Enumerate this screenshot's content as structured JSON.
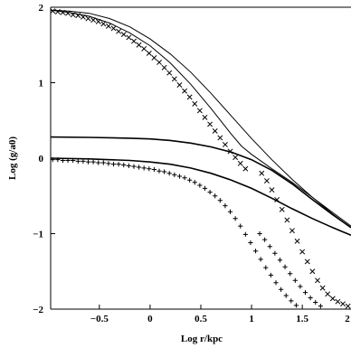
{
  "chart_data": {
    "type": "line",
    "title": "",
    "xlabel": "Log r/kpc",
    "ylabel": "Log (g/a0)",
    "xlim": [
      -0.98,
      1.98
    ],
    "ylim": [
      -2,
      2
    ],
    "grid": false,
    "x_ticks": [
      {
        "value": -0.5,
        "label": "−0.5"
      },
      {
        "value": 0,
        "label": "0"
      },
      {
        "value": 0.5,
        "label": "0.5"
      },
      {
        "value": 1,
        "label": "1"
      },
      {
        "value": 1.5,
        "label": "1.5"
      },
      {
        "value": 2,
        "label": "2"
      }
    ],
    "y_ticks": [
      {
        "value": 2,
        "label": "2"
      },
      {
        "value": 1,
        "label": "1"
      },
      {
        "value": 0,
        "label": "0"
      },
      {
        "value": -1,
        "label": "−1"
      },
      {
        "value": -2,
        "label": "−2"
      }
    ],
    "series": [
      {
        "style": "line",
        "width": 1,
        "points": [
          [
            -0.98,
            1.96
          ],
          [
            -0.8,
            1.95
          ],
          [
            -0.6,
            1.92
          ],
          [
            -0.4,
            1.85
          ],
          [
            -0.2,
            1.74
          ],
          [
            0.0,
            1.58
          ],
          [
            0.2,
            1.38
          ],
          [
            0.4,
            1.14
          ],
          [
            0.6,
            0.86
          ],
          [
            0.8,
            0.56
          ],
          [
            1.0,
            0.26
          ],
          [
            1.2,
            -0.02
          ],
          [
            1.4,
            -0.28
          ],
          [
            1.6,
            -0.52
          ],
          [
            1.8,
            -0.74
          ],
          [
            1.98,
            -0.92
          ]
        ]
      },
      {
        "style": "line",
        "width": 1.6,
        "points": [
          [
            -0.98,
            0.28
          ],
          [
            -0.6,
            0.275
          ],
          [
            -0.2,
            0.265
          ],
          [
            0.0,
            0.255
          ],
          [
            0.2,
            0.235
          ],
          [
            0.4,
            0.2
          ],
          [
            0.6,
            0.15
          ],
          [
            0.8,
            0.08
          ],
          [
            1.0,
            -0.02
          ],
          [
            1.2,
            -0.16
          ],
          [
            1.4,
            -0.34
          ],
          [
            1.6,
            -0.55
          ],
          [
            1.8,
            -0.75
          ],
          [
            1.98,
            -0.92
          ]
        ]
      },
      {
        "style": "line",
        "width": 1.6,
        "points": [
          [
            -0.98,
            0.0
          ],
          [
            -0.6,
            -0.01
          ],
          [
            -0.2,
            -0.03
          ],
          [
            0.0,
            -0.05
          ],
          [
            0.2,
            -0.08
          ],
          [
            0.4,
            -0.13
          ],
          [
            0.6,
            -0.2
          ],
          [
            0.8,
            -0.29
          ],
          [
            1.0,
            -0.4
          ],
          [
            1.2,
            -0.53
          ],
          [
            1.4,
            -0.67
          ],
          [
            1.6,
            -0.8
          ],
          [
            1.8,
            -0.92
          ],
          [
            1.98,
            -1.02
          ]
        ]
      },
      {
        "style": "line",
        "width": 1,
        "points": [
          [
            -0.98,
            1.96
          ],
          [
            -0.8,
            1.93
          ],
          [
            -0.6,
            1.88
          ],
          [
            -0.4,
            1.79
          ],
          [
            -0.2,
            1.66
          ],
          [
            0.0,
            1.49
          ],
          [
            0.2,
            1.26
          ],
          [
            0.4,
            0.98
          ],
          [
            0.6,
            0.66
          ],
          [
            0.8,
            0.32
          ],
          [
            0.9,
            0.16
          ],
          [
            1.0,
            0.05
          ],
          [
            1.2,
            -0.14
          ],
          [
            1.4,
            -0.32
          ],
          [
            1.6,
            -0.52
          ],
          [
            1.8,
            -0.72
          ],
          [
            1.98,
            -0.9
          ]
        ]
      },
      {
        "style": "markers",
        "marker": "cross",
        "points": [
          [
            -0.96,
            1.95
          ],
          [
            -0.91,
            1.94
          ],
          [
            -0.86,
            1.93
          ],
          [
            -0.81,
            1.92
          ],
          [
            -0.76,
            1.9
          ],
          [
            -0.71,
            1.89
          ],
          [
            -0.66,
            1.87
          ],
          [
            -0.61,
            1.85
          ],
          [
            -0.56,
            1.83
          ],
          [
            -0.51,
            1.81
          ],
          [
            -0.46,
            1.78
          ],
          [
            -0.41,
            1.75
          ],
          [
            -0.36,
            1.72
          ],
          [
            -0.31,
            1.68
          ],
          [
            -0.26,
            1.64
          ],
          [
            -0.21,
            1.6
          ],
          [
            -0.16,
            1.55
          ],
          [
            -0.11,
            1.5
          ],
          [
            -0.06,
            1.45
          ],
          [
            -0.01,
            1.39
          ],
          [
            0.04,
            1.33
          ],
          [
            0.09,
            1.27
          ],
          [
            0.14,
            1.2
          ],
          [
            0.19,
            1.13
          ],
          [
            0.24,
            1.05
          ],
          [
            0.29,
            0.97
          ],
          [
            0.34,
            0.89
          ],
          [
            0.39,
            0.81
          ],
          [
            0.44,
            0.72
          ],
          [
            0.49,
            0.63
          ],
          [
            0.54,
            0.54
          ],
          [
            0.59,
            0.45
          ],
          [
            0.64,
            0.36
          ],
          [
            0.69,
            0.27
          ],
          [
            0.74,
            0.18
          ],
          [
            0.79,
            0.09
          ],
          [
            0.84,
            0.01
          ],
          [
            0.89,
            -0.07
          ],
          [
            0.94,
            -0.14
          ],
          [
            1.1,
            -0.2
          ],
          [
            1.15,
            -0.3
          ],
          [
            1.2,
            -0.42
          ],
          [
            1.25,
            -0.55
          ],
          [
            1.3,
            -0.68
          ],
          [
            1.35,
            -0.82
          ],
          [
            1.4,
            -0.96
          ],
          [
            1.45,
            -1.1
          ],
          [
            1.5,
            -1.24
          ],
          [
            1.55,
            -1.37
          ],
          [
            1.6,
            -1.5
          ],
          [
            1.65,
            -1.62
          ],
          [
            1.7,
            -1.72
          ],
          [
            1.75,
            -1.8
          ],
          [
            1.8,
            -1.86
          ],
          [
            1.85,
            -1.9
          ],
          [
            1.9,
            -1.93
          ],
          [
            1.95,
            -1.96
          ]
        ]
      },
      {
        "style": "markers",
        "marker": "plus",
        "points": [
          [
            -0.96,
            -0.02
          ],
          [
            -0.91,
            -0.02
          ],
          [
            -0.86,
            -0.03
          ],
          [
            -0.81,
            -0.03
          ],
          [
            -0.76,
            -0.03
          ],
          [
            -0.71,
            -0.04
          ],
          [
            -0.66,
            -0.04
          ],
          [
            -0.61,
            -0.05
          ],
          [
            -0.56,
            -0.05
          ],
          [
            -0.51,
            -0.06
          ],
          [
            -0.46,
            -0.06
          ],
          [
            -0.41,
            -0.07
          ],
          [
            -0.36,
            -0.08
          ],
          [
            -0.31,
            -0.08
          ],
          [
            -0.26,
            -0.09
          ],
          [
            -0.21,
            -0.1
          ],
          [
            -0.16,
            -0.11
          ],
          [
            -0.11,
            -0.12
          ],
          [
            -0.06,
            -0.13
          ],
          [
            -0.01,
            -0.14
          ],
          [
            0.04,
            -0.15
          ],
          [
            0.09,
            -0.17
          ],
          [
            0.14,
            -0.18
          ],
          [
            0.19,
            -0.2
          ],
          [
            0.24,
            -0.22
          ],
          [
            0.29,
            -0.24
          ],
          [
            0.34,
            -0.26
          ],
          [
            0.39,
            -0.29
          ],
          [
            0.44,
            -0.32
          ],
          [
            0.49,
            -0.36
          ],
          [
            0.54,
            -0.4
          ],
          [
            0.59,
            -0.45
          ],
          [
            0.64,
            -0.5
          ],
          [
            0.69,
            -0.56
          ],
          [
            0.74,
            -0.63
          ],
          [
            0.79,
            -0.71
          ],
          [
            0.84,
            -0.8
          ],
          [
            0.89,
            -0.9
          ],
          [
            0.94,
            -1.01
          ],
          [
            0.99,
            -1.12
          ],
          [
            1.04,
            -1.23
          ],
          [
            1.09,
            -1.34
          ],
          [
            1.14,
            -1.45
          ],
          [
            1.19,
            -1.55
          ],
          [
            1.24,
            -1.65
          ],
          [
            1.29,
            -1.74
          ],
          [
            1.34,
            -1.82
          ],
          [
            1.39,
            -1.89
          ],
          [
            1.44,
            -1.95
          ]
        ]
      },
      {
        "style": "markers",
        "marker": "plus",
        "points": [
          [
            1.08,
            -1.0
          ],
          [
            1.13,
            -1.08
          ],
          [
            1.18,
            -1.17
          ],
          [
            1.23,
            -1.26
          ],
          [
            1.28,
            -1.35
          ],
          [
            1.33,
            -1.44
          ],
          [
            1.38,
            -1.53
          ],
          [
            1.43,
            -1.62
          ],
          [
            1.48,
            -1.7
          ],
          [
            1.53,
            -1.78
          ],
          [
            1.58,
            -1.85
          ],
          [
            1.63,
            -1.91
          ],
          [
            1.68,
            -1.96
          ]
        ]
      }
    ]
  }
}
